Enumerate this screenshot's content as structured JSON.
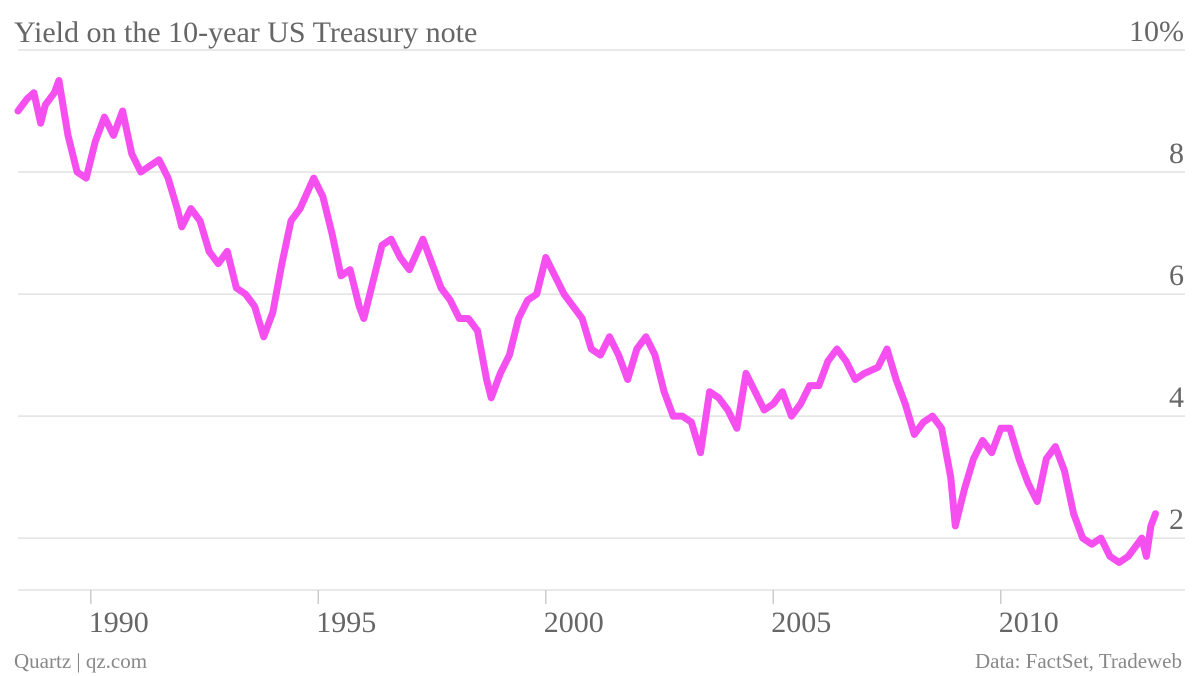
{
  "chart_data": {
    "type": "line",
    "title": "Yield on the 10-year US Treasury note",
    "source": "Data: FactSet, Tradeweb",
    "credit": "Quartz | qz.com",
    "color": "#f54ff0",
    "grid": true,
    "xlim": [
      1988.4,
      2013.5
    ],
    "xticks": [
      1990,
      1995,
      2000,
      2005,
      2010
    ],
    "ylim": [
      1.15,
      10
    ],
    "yticks": [
      2,
      4,
      6,
      8,
      {
        "value": 10,
        "label": "10%"
      }
    ],
    "x": [
      1988.4,
      1988.6,
      1988.75,
      1988.9,
      1989.0,
      1989.2,
      1989.3,
      1989.5,
      1989.7,
      1989.9,
      1990.1,
      1990.3,
      1990.5,
      1990.7,
      1990.9,
      1991.1,
      1991.3,
      1991.5,
      1991.7,
      1991.9,
      1992.0,
      1992.2,
      1992.4,
      1992.6,
      1992.8,
      1993.0,
      1993.2,
      1993.4,
      1993.6,
      1993.8,
      1994.0,
      1994.2,
      1994.4,
      1994.6,
      1994.9,
      1995.1,
      1995.3,
      1995.5,
      1995.7,
      1995.9,
      1996.0,
      1996.2,
      1996.4,
      1996.6,
      1996.8,
      1997.0,
      1997.3,
      1997.5,
      1997.7,
      1997.9,
      1998.1,
      1998.3,
      1998.5,
      1998.7,
      1998.8,
      1999.0,
      1999.2,
      1999.4,
      1999.6,
      1999.8,
      2000.0,
      2000.2,
      2000.4,
      2000.6,
      2000.8,
      2001.0,
      2001.2,
      2001.4,
      2001.6,
      2001.8,
      2002.0,
      2002.2,
      2002.4,
      2002.6,
      2002.8,
      2003.0,
      2003.2,
      2003.4,
      2003.6,
      2003.8,
      2004.0,
      2004.2,
      2004.4,
      2004.6,
      2004.8,
      2005.0,
      2005.2,
      2005.4,
      2005.6,
      2005.8,
      2006.0,
      2006.2,
      2006.4,
      2006.6,
      2006.8,
      2007.0,
      2007.3,
      2007.5,
      2007.7,
      2007.9,
      2008.1,
      2008.3,
      2008.5,
      2008.7,
      2008.9,
      2009.0,
      2009.2,
      2009.4,
      2009.6,
      2009.8,
      2010.0,
      2010.2,
      2010.4,
      2010.6,
      2010.8,
      2011.0,
      2011.2,
      2011.4,
      2011.6,
      2011.8,
      2012.0,
      2012.2,
      2012.4,
      2012.6,
      2012.8,
      2013.0,
      2013.1,
      2013.2,
      2013.3,
      2013.4
    ],
    "values": [
      9.0,
      9.2,
      9.3,
      8.8,
      9.1,
      9.3,
      9.5,
      8.6,
      8.0,
      7.9,
      8.5,
      8.9,
      8.6,
      9.0,
      8.3,
      8.0,
      8.1,
      8.2,
      7.9,
      7.4,
      7.1,
      7.4,
      7.2,
      6.7,
      6.5,
      6.7,
      6.1,
      6.0,
      5.8,
      5.3,
      5.7,
      6.5,
      7.2,
      7.4,
      7.9,
      7.6,
      7.0,
      6.3,
      6.4,
      5.8,
      5.6,
      6.2,
      6.8,
      6.9,
      6.6,
      6.4,
      6.9,
      6.5,
      6.1,
      5.9,
      5.6,
      5.6,
      5.4,
      4.6,
      4.3,
      4.7,
      5.0,
      5.6,
      5.9,
      6.0,
      6.6,
      6.3,
      6.0,
      5.8,
      5.6,
      5.1,
      5.0,
      5.3,
      5.0,
      4.6,
      5.1,
      5.3,
      5.0,
      4.4,
      4.0,
      4.0,
      3.9,
      3.4,
      4.4,
      4.3,
      4.1,
      3.8,
      4.7,
      4.4,
      4.1,
      4.2,
      4.4,
      4.0,
      4.2,
      4.5,
      4.5,
      4.9,
      5.1,
      4.9,
      4.6,
      4.7,
      4.8,
      5.1,
      4.6,
      4.2,
      3.7,
      3.9,
      4.0,
      3.8,
      3.0,
      2.2,
      2.8,
      3.3,
      3.6,
      3.4,
      3.8,
      3.8,
      3.3,
      2.9,
      2.6,
      3.3,
      3.5,
      3.1,
      2.4,
      2.0,
      1.9,
      2.0,
      1.7,
      1.6,
      1.7,
      1.9,
      2.0,
      1.7,
      2.2,
      2.4
    ]
  }
}
